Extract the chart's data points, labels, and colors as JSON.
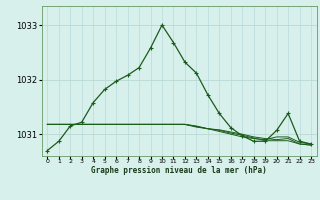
{
  "title": "Graphe pression niveau de la mer (hPa)",
  "background_color": "#d8f0ec",
  "grid_color_v": "#c0dede",
  "grid_color_h": "#b8d8d4",
  "line_color": "#1a5c1a",
  "xlim": [
    -0.5,
    23.5
  ],
  "ylim": [
    1030.6,
    1033.35
  ],
  "yticks": [
    1031,
    1032,
    1033
  ],
  "xticks": [
    0,
    1,
    2,
    3,
    4,
    5,
    6,
    7,
    8,
    9,
    10,
    11,
    12,
    13,
    14,
    15,
    16,
    17,
    18,
    19,
    20,
    21,
    22,
    23
  ],
  "series1": [
    1030.7,
    1030.87,
    1031.15,
    1031.22,
    1031.58,
    1031.82,
    1031.97,
    1032.08,
    1032.22,
    1032.58,
    1033.0,
    1032.68,
    1032.32,
    1032.12,
    1031.72,
    1031.38,
    1031.12,
    1030.97,
    1030.87,
    1030.87,
    1031.07,
    1031.38,
    1030.87,
    1030.82
  ],
  "series2": [
    1031.18,
    1031.18,
    1031.18,
    1031.18,
    1031.18,
    1031.18,
    1031.18,
    1031.18,
    1031.18,
    1031.18,
    1031.18,
    1031.18,
    1031.18,
    1031.15,
    1031.1,
    1031.05,
    1031.0,
    1030.95,
    1030.92,
    1030.9,
    1030.95,
    1030.95,
    1030.85,
    1030.82
  ],
  "series3": [
    1031.18,
    1031.18,
    1031.18,
    1031.18,
    1031.18,
    1031.18,
    1031.18,
    1031.18,
    1031.18,
    1031.18,
    1031.18,
    1031.18,
    1031.18,
    1031.14,
    1031.1,
    1031.07,
    1031.02,
    1030.98,
    1030.93,
    1030.88,
    1030.88,
    1030.88,
    1030.82,
    1030.8
  ],
  "series4": [
    1031.18,
    1031.18,
    1031.18,
    1031.18,
    1031.18,
    1031.18,
    1031.18,
    1031.18,
    1031.18,
    1031.18,
    1031.18,
    1031.18,
    1031.18,
    1031.13,
    1031.1,
    1031.08,
    1031.04,
    1031.0,
    1030.95,
    1030.92,
    1030.9,
    1030.92,
    1030.82,
    1030.8
  ]
}
